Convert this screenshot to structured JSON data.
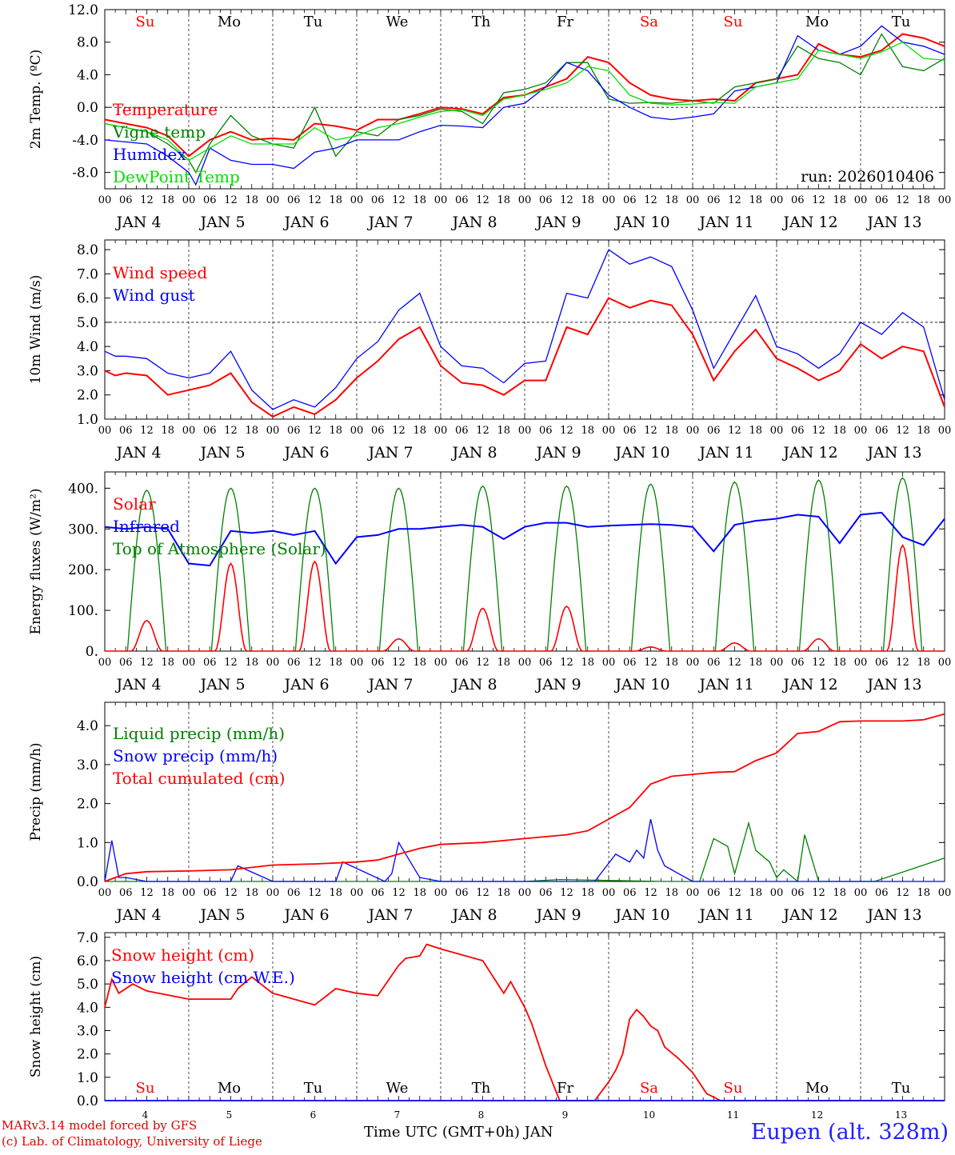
{
  "chart_data": [
    {
      "type": "line",
      "ylabel": "2m Temp. (ºC)",
      "ylim": [
        -10,
        12
      ],
      "y_ticks": [
        "12.0",
        "8.0",
        "4.0",
        "0.0",
        "-4.0",
        "-8.0"
      ],
      "reference_line": 0,
      "days_top": [
        "Su",
        "Mo",
        "Tu",
        "We",
        "Th",
        "Fr",
        "Sa",
        "Su",
        "Mo",
        "Tu"
      ],
      "annotation": "run: 2026010406",
      "legend": [
        "Temperature",
        "Vigne temp",
        "Humidex",
        "DewPoint Temp"
      ],
      "series": [
        {
          "name": "Temperature",
          "color": "#ff0000",
          "x": [
            0,
            12,
            18,
            24,
            30,
            36,
            42,
            48,
            54,
            60,
            66,
            72,
            78,
            84,
            90,
            96,
            102,
            108,
            114,
            120,
            126,
            132,
            138,
            144,
            150,
            156,
            162,
            168,
            174,
            180,
            186,
            192,
            198,
            204,
            210,
            216,
            222,
            228,
            234,
            240
          ],
          "y": [
            -1.5,
            -2.5,
            -3.5,
            -6,
            -4,
            -3,
            -4,
            -3.8,
            -4,
            -2,
            -2.3,
            -2.8,
            -1.5,
            -1.5,
            -0.8,
            0,
            -0.2,
            -0.8,
            1.2,
            1.5,
            2.5,
            3.5,
            6.2,
            5.5,
            3,
            1.5,
            1,
            0.8,
            1,
            0.8,
            3,
            3.5,
            4,
            7.8,
            6.5,
            6.2,
            7,
            9,
            8.5,
            7.5
          ]
        },
        {
          "name": "Vigne temp",
          "color": "#008000",
          "x": [
            0,
            12,
            18,
            24,
            26,
            30,
            36,
            42,
            48,
            54,
            60,
            66,
            72,
            78,
            84,
            90,
            96,
            102,
            108,
            114,
            120,
            126,
            132,
            138,
            144,
            150,
            156,
            162,
            168,
            174,
            180,
            186,
            192,
            198,
            204,
            210,
            216,
            222,
            228,
            234,
            240
          ],
          "y": [
            -2,
            -3,
            -4.5,
            -6.5,
            -8,
            -4.5,
            -1,
            -3.5,
            -4.5,
            -5,
            0,
            -6,
            -3,
            -3.5,
            -1.5,
            -1,
            -0.2,
            -0.5,
            -2,
            1.8,
            2.2,
            3,
            5.5,
            5.5,
            1,
            0.5,
            0.6,
            0.5,
            0.8,
            0.5,
            2.5,
            3,
            3.5,
            7.5,
            6,
            5.5,
            4,
            9,
            5,
            4.5,
            6
          ]
        },
        {
          "name": "Humidex",
          "color": "#0000ff",
          "x": [
            0,
            12,
            18,
            24,
            26,
            30,
            36,
            42,
            48,
            54,
            60,
            66,
            72,
            78,
            84,
            90,
            96,
            102,
            108,
            114,
            120,
            126,
            132,
            138,
            144,
            150,
            156,
            162,
            168,
            174,
            180,
            186,
            192,
            198,
            204,
            210,
            216,
            222,
            228,
            234,
            240
          ],
          "y": [
            -4,
            -4.5,
            -6,
            -8,
            -9.5,
            -5,
            -6.5,
            -7,
            -7,
            -7.5,
            -5.5,
            -5,
            -4,
            -4,
            -4,
            -3,
            -2.2,
            -2.3,
            -2.5,
            0,
            0.5,
            2.5,
            5.5,
            4.5,
            1.5,
            0,
            -1.2,
            -1.5,
            -1.2,
            -0.8,
            2,
            2.5,
            3,
            8.8,
            7,
            6.5,
            7.5,
            10,
            8,
            7.5,
            6.5
          ]
        },
        {
          "name": "DewPoint Temp",
          "color": "#00e000",
          "x": [
            0,
            12,
            18,
            24,
            30,
            36,
            42,
            48,
            54,
            60,
            66,
            72,
            78,
            84,
            90,
            96,
            102,
            108,
            114,
            120,
            126,
            132,
            138,
            144,
            150,
            156,
            162,
            168,
            174,
            180,
            186,
            192,
            198,
            204,
            210,
            216,
            222,
            228,
            234,
            240
          ],
          "y": [
            -2,
            -3,
            -4,
            -6.5,
            -5,
            -3.5,
            -4.5,
            -4.5,
            -4.5,
            -2.5,
            -4,
            -3.5,
            -2.5,
            -2,
            -1.2,
            -0.5,
            -0.3,
            -1,
            1,
            1.5,
            2.2,
            3,
            5,
            4.5,
            1.5,
            0.5,
            0.3,
            0.4,
            0.6,
            0.5,
            2.5,
            3,
            3.5,
            7,
            6.5,
            6,
            6.8,
            8,
            6,
            5.8
          ]
        }
      ]
    },
    {
      "type": "line",
      "ylabel": "10m Wind (m/s)",
      "ylim": [
        1,
        8.4
      ],
      "y_ticks": [
        "8.0",
        "7.0",
        "6.0",
        "5.0",
        "4.0",
        "3.0",
        "2.0",
        "1.0"
      ],
      "reference_line": 5,
      "legend": [
        "Wind speed",
        "Wind gust"
      ],
      "series": [
        {
          "name": "Wind speed",
          "color": "#ff0000",
          "x": [
            0,
            3,
            6,
            12,
            18,
            24,
            30,
            36,
            42,
            48,
            54,
            60,
            66,
            72,
            78,
            84,
            90,
            96,
            102,
            108,
            114,
            120,
            126,
            132,
            138,
            144,
            150,
            156,
            162,
            168,
            174,
            180,
            186,
            192,
            198,
            204,
            210,
            216,
            222,
            228,
            234,
            240
          ],
          "y": [
            3,
            2.8,
            2.9,
            2.8,
            2.0,
            2.2,
            2.4,
            2.9,
            1.7,
            1.1,
            1.5,
            1.2,
            1.8,
            2.7,
            3.4,
            4.3,
            4.8,
            3.2,
            2.5,
            2.4,
            2.0,
            2.6,
            2.6,
            4.8,
            4.5,
            6.0,
            5.6,
            5.9,
            5.7,
            4.5,
            2.6,
            3.8,
            4.7,
            3.5,
            3.1,
            2.6,
            3.0,
            4.1,
            3.5,
            4.0,
            3.8,
            1.5
          ]
        },
        {
          "name": "Wind gust",
          "color": "#0000ff",
          "x": [
            0,
            3,
            6,
            12,
            18,
            24,
            30,
            36,
            42,
            48,
            54,
            60,
            66,
            72,
            78,
            84,
            90,
            96,
            102,
            108,
            114,
            120,
            126,
            132,
            138,
            144,
            150,
            156,
            162,
            168,
            174,
            180,
            186,
            192,
            198,
            204,
            210,
            216,
            222,
            228,
            234,
            240
          ],
          "y": [
            3.8,
            3.6,
            3.6,
            3.5,
            2.9,
            2.7,
            2.9,
            3.8,
            2.2,
            1.4,
            1.8,
            1.5,
            2.3,
            3.5,
            4.2,
            5.5,
            6.2,
            4.0,
            3.2,
            3.1,
            2.5,
            3.3,
            3.4,
            6.2,
            6.0,
            8.0,
            7.4,
            7.7,
            7.3,
            5.5,
            3.1,
            4.6,
            6.1,
            4.0,
            3.7,
            3.1,
            3.7,
            5.0,
            4.5,
            5.4,
            4.8,
            1.8
          ]
        }
      ]
    },
    {
      "type": "line",
      "ylabel": "Energy fluxes (W/m²)",
      "ylim": [
        0,
        440
      ],
      "y_ticks": [
        "400.",
        "300.",
        "200.",
        "100.",
        "0."
      ],
      "legend": [
        "Solar",
        "Infrared",
        "Top of Atmosphere (Solar)"
      ],
      "toa_peaks": [
        395,
        400,
        400,
        400,
        405,
        405,
        410,
        415,
        420,
        425
      ],
      "solar_peaks": [
        75,
        215,
        220,
        30,
        105,
        110,
        10,
        20,
        30,
        260
      ],
      "infrared": {
        "name": "Infrared",
        "color": "#0000ff",
        "x": [
          0,
          6,
          12,
          18,
          24,
          30,
          36,
          42,
          48,
          54,
          60,
          66,
          72,
          78,
          84,
          90,
          96,
          102,
          108,
          114,
          120,
          126,
          132,
          138,
          144,
          150,
          156,
          162,
          168,
          174,
          180,
          186,
          192,
          198,
          204,
          210,
          216,
          222,
          228,
          234,
          240
        ],
        "y": [
          305,
          300,
          305,
          300,
          215,
          210,
          295,
          290,
          295,
          285,
          295,
          215,
          280,
          285,
          300,
          300,
          305,
          310,
          305,
          275,
          305,
          315,
          315,
          305,
          308,
          310,
          312,
          310,
          305,
          245,
          310,
          320,
          325,
          335,
          330,
          265,
          335,
          340,
          280,
          260,
          325
        ]
      },
      "series_colors": {
        "solar": "#ff0000",
        "toa": "#008000"
      }
    },
    {
      "type": "line",
      "ylabel": "Precip (mm/h)",
      "ylim": [
        0,
        4.6
      ],
      "y_ticks": [
        "4.0",
        "3.0",
        "2.0",
        "1.0",
        "0.0"
      ],
      "legend": [
        "Liquid precip (mm/h)",
        "Snow precip (mm/h)",
        "Total cumulated (cm)"
      ],
      "series": [
        {
          "name": "Liquid precip (mm/h)",
          "color": "#008000",
          "x": [
            0,
            120,
            130,
            160,
            170,
            174,
            178,
            180,
            184,
            186,
            190,
            192,
            194,
            198,
            200,
            204,
            208,
            212,
            214,
            220,
            240
          ],
          "y": [
            0,
            0,
            0.05,
            0,
            0,
            1.1,
            0.9,
            0.2,
            1.5,
            0.8,
            0.5,
            0.1,
            0.3,
            0,
            1.2,
            0,
            0,
            0,
            0,
            0,
            0.6
          ]
        },
        {
          "name": "Snow precip (mm/h)",
          "color": "#0000ff",
          "x": [
            0,
            2,
            4,
            6,
            12,
            36,
            38,
            48,
            66,
            68,
            80,
            82,
            84,
            90,
            96,
            120,
            140,
            146,
            150,
            152,
            154,
            156,
            158,
            160,
            164,
            168,
            180,
            240
          ],
          "y": [
            0,
            1.05,
            0.1,
            0.1,
            0,
            0,
            0.4,
            0,
            0,
            0.5,
            0,
            0.2,
            1.0,
            0.1,
            0,
            0,
            0,
            0.7,
            0.5,
            0.8,
            0.6,
            1.6,
            0.8,
            0.4,
            0.2,
            0,
            0,
            0
          ]
        },
        {
          "name": "Total cumulated (cm)",
          "color": "#ff0000",
          "x": [
            0,
            6,
            12,
            24,
            36,
            48,
            60,
            72,
            78,
            84,
            90,
            96,
            108,
            114,
            120,
            132,
            138,
            144,
            150,
            156,
            162,
            168,
            174,
            180,
            186,
            192,
            198,
            204,
            210,
            216,
            222,
            228,
            234,
            240
          ],
          "y": [
            0,
            0.2,
            0.25,
            0.27,
            0.3,
            0.42,
            0.45,
            0.5,
            0.55,
            0.7,
            0.85,
            0.95,
            1.0,
            1.05,
            1.1,
            1.2,
            1.3,
            1.6,
            1.9,
            2.5,
            2.7,
            2.75,
            2.8,
            2.82,
            3.1,
            3.3,
            3.8,
            3.85,
            4.1,
            4.12,
            4.12,
            4.12,
            4.15,
            4.3
          ]
        }
      ]
    },
    {
      "type": "line",
      "ylabel": "Snow height (cm)",
      "ylim": [
        0,
        7.2
      ],
      "y_ticks": [
        "7.0",
        "6.0",
        "5.0",
        "4.0",
        "3.0",
        "2.0",
        "1.0",
        "0.0"
      ],
      "legend": [
        "Snow height (cm)",
        "Snow height (cm W.E.)"
      ],
      "days_bottom": [
        "Su",
        "Mo",
        "Tu",
        "We",
        "Th",
        "Fr",
        "Sa",
        "Su",
        "Mo",
        "Tu"
      ],
      "date_numbers": [
        "4",
        "5",
        "6",
        "7",
        "8",
        "9",
        "10",
        "11",
        "12",
        "13"
      ],
      "series": [
        {
          "name": "Snow height (cm)",
          "color": "#ff0000",
          "x": [
            0,
            2,
            4,
            8,
            12,
            24,
            36,
            38,
            42,
            48,
            60,
            66,
            72,
            78,
            84,
            86,
            90,
            92,
            96,
            108,
            114,
            116,
            120,
            122,
            126,
            130,
            137,
            140,
            144,
            146,
            148,
            150,
            152,
            154,
            156,
            158,
            160,
            164,
            168,
            172,
            176,
            240
          ],
          "y": [
            4,
            5.2,
            4.6,
            5.0,
            4.7,
            4.35,
            4.35,
            4.8,
            5.3,
            4.6,
            4.1,
            4.8,
            4.6,
            4.5,
            5.8,
            6.1,
            6.2,
            6.7,
            6.5,
            6.0,
            4.6,
            5.1,
            4.0,
            3.3,
            1.5,
            0,
            0,
            0,
            0.8,
            1.3,
            2.0,
            3.5,
            3.9,
            3.6,
            3.2,
            3.0,
            2.3,
            1.8,
            1.2,
            0.3,
            0,
            0
          ]
        },
        {
          "name": "Snow height (cm W.E.)",
          "color": "#0000ff",
          "x": [
            0,
            240
          ],
          "y": [
            0,
            0
          ]
        }
      ]
    }
  ],
  "x_axis": {
    "hour_labels": [
      "00",
      "06",
      "12",
      "18"
    ],
    "final_label": "00",
    "date_labels": [
      "JAN  4",
      "JAN  5",
      "JAN  6",
      "JAN  7",
      "JAN  8",
      "JAN  9",
      "JAN 10",
      "JAN 11",
      "JAN 12",
      "JAN 13"
    ],
    "title": "Time UTC (GMT+0h) JAN"
  },
  "weekend_color": "#ff0000",
  "weekend_index": [
    0,
    6,
    7
  ],
  "footer": {
    "credit_line1": "MARv3.14 model forced by GFS",
    "credit_line2": "(c) Lab. of Climatology, University of Liege",
    "station": "Eupen (alt. 328m)"
  }
}
